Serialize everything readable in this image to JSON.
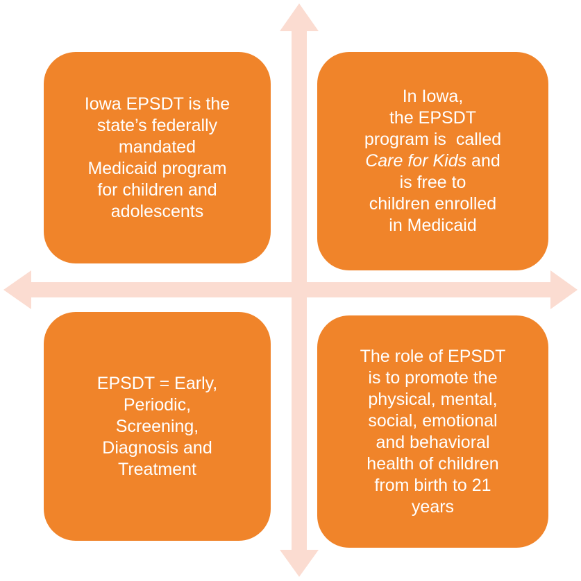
{
  "nodes": [
    {
      "lines": [
        "Iowa EPSDT is the",
        "state’s federally",
        "mandated",
        "Medicaid program",
        "for children and",
        "adolescents"
      ]
    },
    {
      "lines": [
        "In Iowa,",
        "the EPSDT",
        "program is  called",
        {
          "italic": "Care for Kids",
          "rest": " and"
        },
        "is free to",
        "children enrolled",
        "in Medicaid"
      ]
    },
    {
      "lines": [
        "EPSDT = Early,",
        "Periodic,",
        "Screening,",
        "Diagnosis and",
        "Treatment"
      ]
    },
    {
      "lines": [
        "The role of EPSDT",
        "is to promote the",
        "physical, mental,",
        "social, emotional",
        "and behavioral",
        "health of children",
        "from birth to 21",
        "years"
      ]
    }
  ]
}
